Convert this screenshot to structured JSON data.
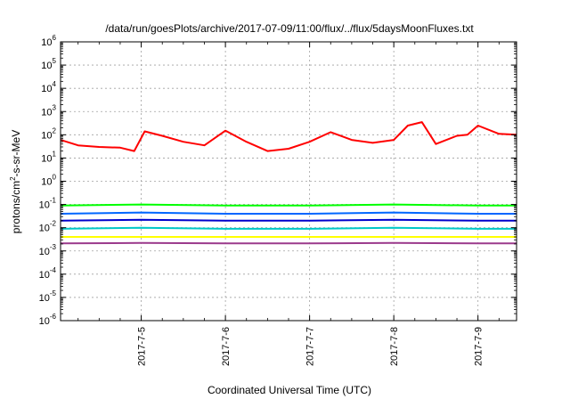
{
  "chart_data": {
    "type": "line",
    "title": "/data/run/goesPlots/archive/2017-07-09/11:00/flux/../flux/5daysMoonFluxes.txt",
    "xlabel": "Coordinated Universal Time (UTC)",
    "ylabel": {
      "pre": "protons/cm",
      "sup": "2",
      "post": "-s-sr-MeV"
    },
    "y_scale": "log",
    "ylim": [
      1e-06,
      1000000.0
    ],
    "y_ticks": [
      {
        "base": "10",
        "exp": "-6",
        "value": 1e-06
      },
      {
        "base": "10",
        "exp": "-5",
        "value": 1e-05
      },
      {
        "base": "10",
        "exp": "-4",
        "value": 0.0001
      },
      {
        "base": "10",
        "exp": "-3",
        "value": 0.001
      },
      {
        "base": "10",
        "exp": "-2",
        "value": 0.01
      },
      {
        "base": "10",
        "exp": "-1",
        "value": 0.1
      },
      {
        "base": "10",
        "exp": "0",
        "value": 1
      },
      {
        "base": "10",
        "exp": "1",
        "value": 10
      },
      {
        "base": "10",
        "exp": "2",
        "value": 100
      },
      {
        "base": "10",
        "exp": "3",
        "value": 1000
      },
      {
        "base": "10",
        "exp": "4",
        "value": 10000
      },
      {
        "base": "10",
        "exp": "5",
        "value": 100000
      },
      {
        "base": "10",
        "exp": "6",
        "value": 1000000
      }
    ],
    "xlim": [
      "2017-07-04T01:00",
      "2017-07-09T11:00"
    ],
    "x_ticks": [
      {
        "label": "2017-7-5",
        "value": "2017-07-05T00:00"
      },
      {
        "label": "2017-7-6",
        "value": "2017-07-06T00:00"
      },
      {
        "label": "2017-7-7",
        "value": "2017-07-07T00:00"
      },
      {
        "label": "2017-7-8",
        "value": "2017-07-08T00:00"
      },
      {
        "label": "2017-7-9",
        "value": "2017-07-09T00:00"
      }
    ],
    "grid": true,
    "series": [
      {
        "color": "#ff0000",
        "x": [
          "2017-07-04T01:00",
          "2017-07-04T06:00",
          "2017-07-04T12:00",
          "2017-07-04T18:00",
          "2017-07-04T22:00",
          "2017-07-05T01:00",
          "2017-07-05T06:00",
          "2017-07-05T12:00",
          "2017-07-05T18:00",
          "2017-07-06T00:00",
          "2017-07-06T06:00",
          "2017-07-06T12:00",
          "2017-07-06T18:00",
          "2017-07-07T00:00",
          "2017-07-07T06:00",
          "2017-07-07T12:00",
          "2017-07-07T18:00",
          "2017-07-08T00:00",
          "2017-07-08T04:00",
          "2017-07-08T08:00",
          "2017-07-08T12:00",
          "2017-07-08T18:00",
          "2017-07-08T21:00",
          "2017-07-09T00:00",
          "2017-07-09T06:00",
          "2017-07-09T11:00"
        ],
        "y": [
          60,
          35,
          30,
          28,
          20,
          140,
          90,
          50,
          35,
          150,
          50,
          20,
          25,
          50,
          130,
          60,
          45,
          60,
          250,
          350,
          40,
          90,
          100,
          250,
          110,
          100
        ]
      },
      {
        "color": "#00ff00",
        "x": [
          "2017-07-04T01:00",
          "2017-07-05T00:00",
          "2017-07-06T00:00",
          "2017-07-07T00:00",
          "2017-07-08T00:00",
          "2017-07-09T00:00",
          "2017-07-09T11:00"
        ],
        "y": [
          0.09,
          0.1,
          0.09,
          0.09,
          0.1,
          0.09,
          0.09
        ]
      },
      {
        "color": "#0066ff",
        "x": [
          "2017-07-04T01:00",
          "2017-07-05T00:00",
          "2017-07-06T00:00",
          "2017-07-07T00:00",
          "2017-07-08T00:00",
          "2017-07-09T00:00",
          "2017-07-09T11:00"
        ],
        "y": [
          0.04,
          0.045,
          0.04,
          0.04,
          0.045,
          0.04,
          0.04
        ]
      },
      {
        "color": "#0000cc",
        "x": [
          "2017-07-04T01:00",
          "2017-07-05T00:00",
          "2017-07-06T00:00",
          "2017-07-07T00:00",
          "2017-07-08T00:00",
          "2017-07-09T00:00",
          "2017-07-09T11:00"
        ],
        "y": [
          0.02,
          0.022,
          0.02,
          0.02,
          0.022,
          0.02,
          0.02
        ]
      },
      {
        "color": "#00c8c8",
        "x": [
          "2017-07-04T01:00",
          "2017-07-05T00:00",
          "2017-07-06T00:00",
          "2017-07-07T00:00",
          "2017-07-08T00:00",
          "2017-07-09T00:00",
          "2017-07-09T11:00"
        ],
        "y": [
          0.009,
          0.01,
          0.009,
          0.009,
          0.01,
          0.009,
          0.009
        ]
      },
      {
        "color": "#ffff00",
        "x": [
          "2017-07-04T01:00",
          "2017-07-05T00:00",
          "2017-07-06T00:00",
          "2017-07-07T00:00",
          "2017-07-08T00:00",
          "2017-07-09T00:00",
          "2017-07-09T11:00"
        ],
        "y": [
          0.004,
          0.004,
          0.004,
          0.004,
          0.004,
          0.004,
          0.004
        ]
      },
      {
        "color": "#9b3a8c",
        "x": [
          "2017-07-04T01:00",
          "2017-07-05T00:00",
          "2017-07-06T00:00",
          "2017-07-07T00:00",
          "2017-07-08T00:00",
          "2017-07-09T00:00",
          "2017-07-09T11:00"
        ],
        "y": [
          0.0021,
          0.0022,
          0.0021,
          0.0021,
          0.0022,
          0.0021,
          0.0021
        ]
      }
    ]
  }
}
